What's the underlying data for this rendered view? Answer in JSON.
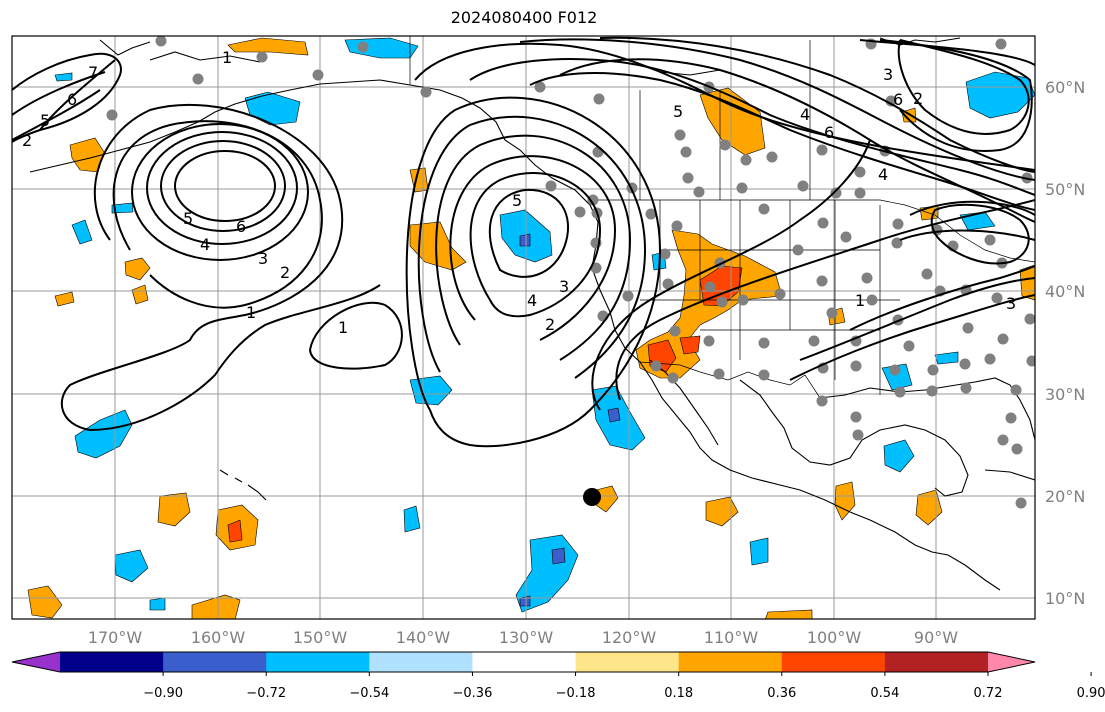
{
  "title": "2024080400 F012",
  "map": {
    "lon_ticks": [
      "170°W",
      "160°W",
      "150°W",
      "140°W",
      "130°W",
      "120°W",
      "110°W",
      "100°W",
      "90°W"
    ],
    "lat_ticks": [
      "60°N",
      "50°N",
      "40°N",
      "30°N",
      "20°N",
      "10°N"
    ],
    "tick_color": "#808080",
    "ocean_color": "#ffffff",
    "grid_color": "#999999"
  },
  "colorbar": {
    "colors": [
      "#9932cc",
      "#00008b",
      "#3a5fcd",
      "#00bfff",
      "#b0e2ff",
      "#ffffff",
      "#fde68a",
      "#ffa500",
      "#ff4500",
      "#b22222",
      "#ff88aa"
    ],
    "labels": [
      "−0.90",
      "−0.72",
      "−0.54",
      "−0.36",
      "−0.18",
      "0.18",
      "0.36",
      "0.54",
      "0.72",
      "0.90"
    ]
  },
  "contour_labels": [
    "1",
    "2",
    "3",
    "4",
    "5",
    "6"
  ]
}
